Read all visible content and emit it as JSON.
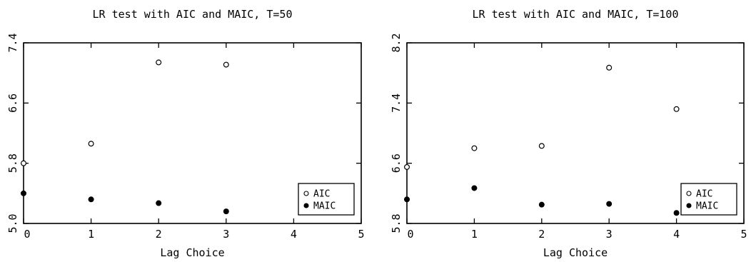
{
  "chart_data": [
    {
      "type": "scatter",
      "title": "LR test with AIC and MAIC, T=50",
      "xlabel": "Lag Choice",
      "ylabel": "",
      "xlim": [
        0,
        5
      ],
      "ylim": [
        5.0,
        7.4
      ],
      "xticks": [
        "0",
        "1",
        "2",
        "3",
        "4",
        "5"
      ],
      "yticks": [
        "5.0",
        "5.8",
        "6.6",
        "7.4"
      ],
      "legend_position": "bottom-right",
      "series": [
        {
          "name": "AIC",
          "marker": "open-circle",
          "x": [
            0,
            1,
            2,
            3
          ],
          "y": [
            5.8,
            6.06,
            7.14,
            7.11
          ]
        },
        {
          "name": "MAIC",
          "marker": "filled-circle",
          "x": [
            0,
            1,
            2,
            3
          ],
          "y": [
            5.4,
            5.32,
            5.27,
            5.16
          ]
        }
      ]
    },
    {
      "type": "scatter",
      "title": "LR test with AIC and MAIC, T=100",
      "xlabel": "Lag Choice",
      "ylabel": "",
      "xlim": [
        0,
        5
      ],
      "ylim": [
        5.8,
        8.2
      ],
      "xticks": [
        "0",
        "1",
        "2",
        "3",
        "4",
        "5"
      ],
      "yticks": [
        "5.8",
        "6.6",
        "7.4",
        "8.2"
      ],
      "legend_position": "bottom-right",
      "series": [
        {
          "name": "AIC",
          "marker": "open-circle",
          "x": [
            0,
            1,
            2,
            3,
            4
          ],
          "y": [
            6.55,
            6.8,
            6.83,
            7.87,
            7.32
          ]
        },
        {
          "name": "MAIC",
          "marker": "filled-circle",
          "x": [
            0,
            1,
            2,
            3,
            4
          ],
          "y": [
            6.12,
            6.27,
            6.05,
            6.06,
            5.94
          ]
        }
      ]
    }
  ]
}
